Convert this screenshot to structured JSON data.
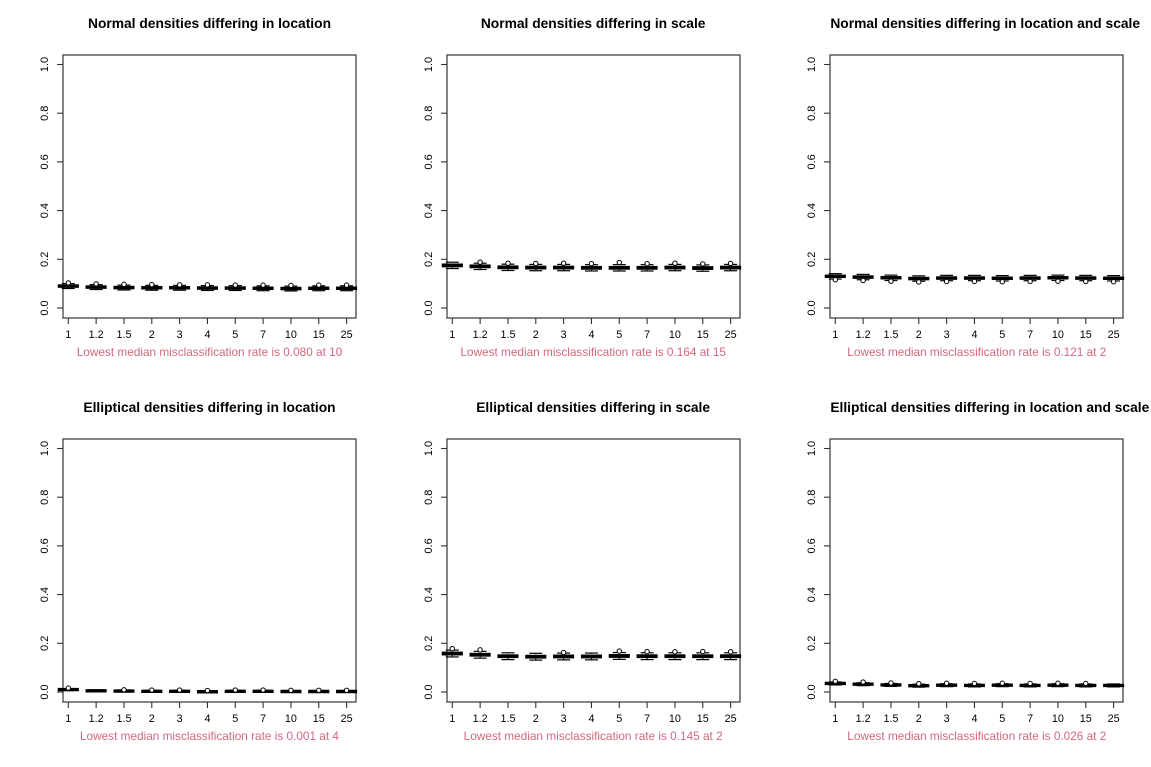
{
  "page": {
    "background": "#ffffff",
    "caption_color": "#d4687e",
    "axis_color": "#333333"
  },
  "chart_data": [
    {
      "type": "boxplot",
      "title": "Normal densities differing in location",
      "caption": "Lowest median misclassification rate is 0.080 at 10",
      "lowest_median": "0.080",
      "lowest_at": "1 0",
      "categories": [
        "1",
        "1.2",
        "1.5",
        "2",
        "3",
        "4",
        "5",
        "7",
        "10",
        "15",
        "25"
      ],
      "ylim": [
        0,
        1
      ],
      "y_tick_values": [
        0,
        0.2,
        0.4,
        0.6,
        0.8,
        1.0
      ],
      "y_tick_labels": [
        "0.0",
        "0.2",
        "0.4",
        "0.6",
        "0.8",
        "1.0"
      ],
      "medians": [
        0.09,
        0.086,
        0.084,
        0.083,
        0.083,
        0.082,
        0.082,
        0.081,
        0.08,
        0.081,
        0.081
      ],
      "box_half": 0.005,
      "whisker_half": 0.01,
      "outliers": [
        0.103,
        0.099,
        0.097,
        0.096,
        0.095,
        0.095,
        0.094,
        0.094,
        0.093,
        0.094,
        0.094
      ]
    },
    {
      "type": "boxplot",
      "title": "Normal densities differing in scale",
      "caption": "Lowest median misclassification rate is 0.164 at 15",
      "lowest_median": "0.164",
      "lowest_at": "15",
      "categories": [
        "1",
        "1.2",
        "1.5",
        "2",
        "3",
        "4",
        "5",
        "7",
        "10",
        "15",
        "25"
      ],
      "ylim": [
        0,
        1
      ],
      "y_tick_values": [
        0,
        0.2,
        0.4,
        0.6,
        0.8,
        1.0
      ],
      "y_tick_labels": [
        "0.0",
        "0.2",
        "0.4",
        "0.6",
        "0.8",
        "1.0"
      ],
      "medians": [
        0.175,
        0.171,
        0.167,
        0.166,
        0.166,
        0.165,
        0.165,
        0.165,
        0.166,
        0.164,
        0.166
      ],
      "box_half": 0.006,
      "whisker_half": 0.013,
      "outliers": [
        null,
        0.188,
        0.184,
        0.183,
        0.184,
        0.182,
        0.187,
        0.182,
        0.184,
        0.181,
        0.183
      ]
    },
    {
      "type": "boxplot",
      "title": "Normal densities differing in location and scale",
      "caption": "Lowest median misclassification rate is 0.121 at 2",
      "lowest_median": "0.121",
      "lowest_at": "2",
      "categories": [
        "1",
        "1.2",
        "1.5",
        "2",
        "3",
        "4",
        "5",
        "7",
        "10",
        "15",
        "25"
      ],
      "ylim": [
        0,
        1
      ],
      "y_tick_values": [
        0,
        0.2,
        0.4,
        0.6,
        0.8,
        1.0
      ],
      "y_tick_labels": [
        "0.0",
        "0.2",
        "0.4",
        "0.6",
        "0.8",
        "1.0"
      ],
      "medians": [
        0.13,
        0.127,
        0.124,
        0.121,
        0.123,
        0.123,
        0.122,
        0.123,
        0.124,
        0.123,
        0.122
      ],
      "box_half": 0.005,
      "whisker_half": 0.011,
      "outliers": [
        0.116,
        0.113,
        0.11,
        0.107,
        0.109,
        0.109,
        0.108,
        0.109,
        0.11,
        0.109,
        0.108
      ]
    },
    {
      "type": "boxplot",
      "title": "Elliptical densities differing in location",
      "caption": "Lowest median misclassification rate is 0.001 at 4",
      "lowest_median": "0.001",
      "lowest_at": "4",
      "categories": [
        "1",
        "1.2",
        "1.5",
        "2",
        "3",
        "4",
        "5",
        "7",
        "10",
        "15",
        "25"
      ],
      "ylim": [
        0,
        1
      ],
      "y_tick_values": [
        0,
        0.2,
        0.4,
        0.6,
        0.8,
        1.0
      ],
      "y_tick_labels": [
        "0.0",
        "0.2",
        "0.4",
        "0.6",
        "0.8",
        "1.0"
      ],
      "medians": [
        0.01,
        0.005,
        0.004,
        0.003,
        0.003,
        0.001,
        0.003,
        0.003,
        0.002,
        0.002,
        0.002
      ],
      "box_half": 0.002,
      "whisker_half": 0.004,
      "outliers": [
        0.016,
        null,
        0.009,
        0.008,
        0.008,
        0.006,
        0.008,
        0.008,
        0.007,
        0.007,
        0.007
      ]
    },
    {
      "type": "boxplot",
      "title": "Elliptical densities differing in scale",
      "caption": "Lowest median misclassification rate is 0.145 at 2",
      "lowest_median": "0.145",
      "lowest_at": "2",
      "categories": [
        "1",
        "1.2",
        "1.5",
        "2",
        "3",
        "4",
        "5",
        "7",
        "10",
        "15",
        "25"
      ],
      "ylim": [
        0,
        1
      ],
      "y_tick_values": [
        0,
        0.2,
        0.4,
        0.6,
        0.8,
        1.0
      ],
      "y_tick_labels": [
        "0.0",
        "0.2",
        "0.4",
        "0.6",
        "0.8",
        "1.0"
      ],
      "medians": [
        0.158,
        0.153,
        0.147,
        0.145,
        0.146,
        0.146,
        0.148,
        0.147,
        0.147,
        0.147,
        0.147
      ],
      "box_half": 0.006,
      "whisker_half": 0.014,
      "outliers": [
        0.178,
        0.173,
        null,
        null,
        0.162,
        null,
        0.168,
        0.166,
        0.165,
        0.166,
        0.165
      ]
    },
    {
      "type": "boxplot",
      "title": "Elliptical densities differing in location and scale",
      "caption": "Lowest median misclassification rate is 0.026 at 2",
      "lowest_median": "0.026",
      "lowest_at": "2",
      "categories": [
        "1",
        "1.2",
        "1.5",
        "2",
        "3",
        "4",
        "5",
        "7",
        "10",
        "15",
        "25"
      ],
      "ylim": [
        0,
        1
      ],
      "y_tick_values": [
        0,
        0.2,
        0.4,
        0.6,
        0.8,
        1.0
      ],
      "y_tick_labels": [
        "0.0",
        "0.2",
        "0.4",
        "0.6",
        "0.8",
        "1.0"
      ],
      "medians": [
        0.035,
        0.032,
        0.029,
        0.026,
        0.028,
        0.027,
        0.028,
        0.027,
        0.028,
        0.027,
        0.027
      ],
      "box_half": 0.003,
      "whisker_half": 0.006,
      "outliers": [
        0.044,
        0.041,
        0.037,
        0.034,
        0.036,
        0.035,
        0.036,
        0.035,
        0.036,
        0.035,
        null
      ]
    }
  ]
}
